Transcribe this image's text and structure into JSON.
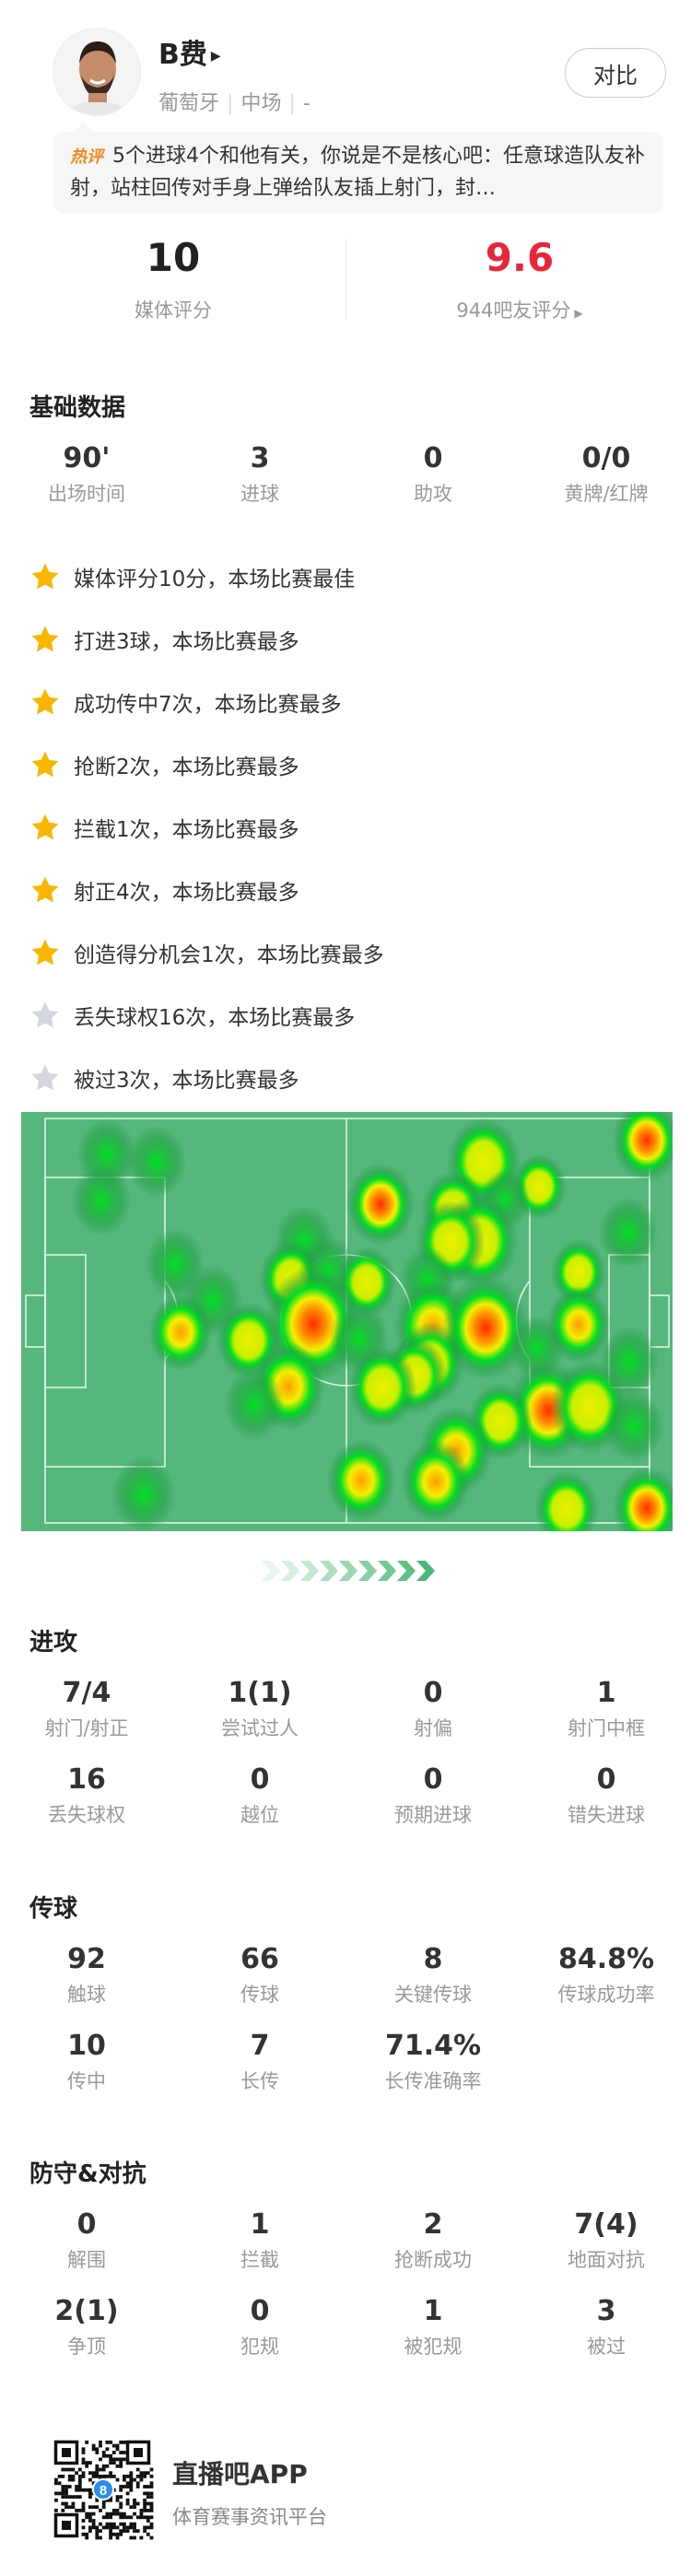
{
  "player": {
    "name": "B费",
    "nationality": "葡萄牙",
    "position": "中场",
    "extra": "-",
    "compare_label": "对比"
  },
  "comment": {
    "tag": "热评",
    "text": "5个进球4个和他有关，你说是不是核心吧：任意球造队友补射，站柱回传对手身上弹给队友插上射门，封…"
  },
  "ratings": {
    "media": {
      "value": "10",
      "label": "媒体评分"
    },
    "fans": {
      "value": "9.6",
      "label": "944吧友评分",
      "color": "#e8253a"
    }
  },
  "basic": {
    "title": "基础数据",
    "stats": [
      {
        "v": "90'",
        "l": "出场时间"
      },
      {
        "v": "3",
        "l": "进球"
      },
      {
        "v": "0",
        "l": "助攻"
      },
      {
        "v": "0/0",
        "l": "黄牌/红牌"
      }
    ]
  },
  "highlights": [
    {
      "text": "媒体评分10分，本场比赛最佳",
      "type": "gold"
    },
    {
      "text": "打进3球，本场比赛最多",
      "type": "gold"
    },
    {
      "text": "成功传中7次，本场比赛最多",
      "type": "gold"
    },
    {
      "text": "抢断2次，本场比赛最多",
      "type": "gold"
    },
    {
      "text": "拦截1次，本场比赛最多",
      "type": "gold"
    },
    {
      "text": "射正4次，本场比赛最多",
      "type": "gold"
    },
    {
      "text": "创造得分机会1次，本场比赛最多",
      "type": "gold"
    },
    {
      "text": "丢失球权16次，本场比赛最多",
      "type": "gray"
    },
    {
      "text": "被过3次，本场比赛最多",
      "type": "gray"
    }
  ],
  "attack": {
    "title": "进攻",
    "stats": [
      {
        "v": "7/4",
        "l": "射门/射正"
      },
      {
        "v": "1(1)",
        "l": "尝试过人"
      },
      {
        "v": "0",
        "l": "射偏"
      },
      {
        "v": "1",
        "l": "射门中框"
      },
      {
        "v": "16",
        "l": "丢失球权"
      },
      {
        "v": "0",
        "l": "越位"
      },
      {
        "v": "0",
        "l": "预期进球"
      },
      {
        "v": "0",
        "l": "错失进球"
      }
    ]
  },
  "passing": {
    "title": "传球",
    "stats": [
      {
        "v": "92",
        "l": "触球"
      },
      {
        "v": "66",
        "l": "传球"
      },
      {
        "v": "8",
        "l": "关键传球"
      },
      {
        "v": "84.8%",
        "l": "传球成功率"
      },
      {
        "v": "10",
        "l": "传中"
      },
      {
        "v": "7",
        "l": "长传"
      },
      {
        "v": "71.4%",
        "l": "长传准确率"
      }
    ]
  },
  "defense": {
    "title": "防守&对抗",
    "stats": [
      {
        "v": "0",
        "l": "解围"
      },
      {
        "v": "1",
        "l": "拦截"
      },
      {
        "v": "2",
        "l": "抢断成功"
      },
      {
        "v": "7(4)",
        "l": "地面对抗"
      },
      {
        "v": "2(1)",
        "l": "争顶"
      },
      {
        "v": "0",
        "l": "犯规"
      },
      {
        "v": "1",
        "l": "被犯规"
      },
      {
        "v": "3",
        "l": "被过"
      }
    ]
  },
  "footer": {
    "app_name": "直播吧APP",
    "tagline": "体育赛事资讯平台"
  },
  "colors": {
    "pitch": "#55b77c",
    "star_gold": "#f9b600",
    "star_gray": "#d3d6dd",
    "accent_green": "#4cb874"
  }
}
